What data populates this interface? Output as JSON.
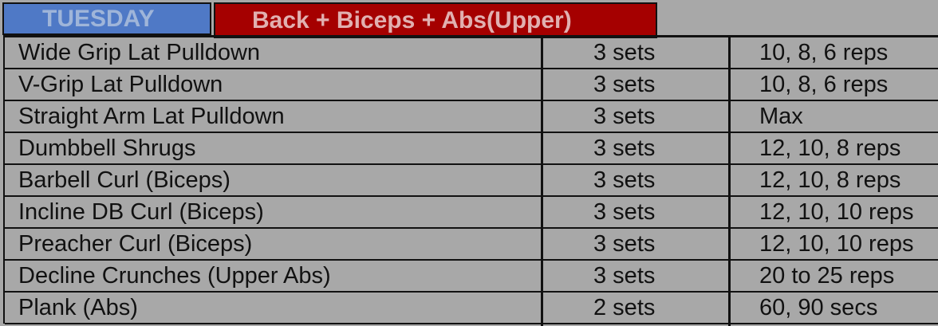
{
  "header": {
    "day": "TUESDAY",
    "title": "Back + Biceps + Abs(Upper)"
  },
  "rows": [
    {
      "exercise": "Wide Grip Lat Pulldown",
      "sets": "3 sets",
      "reps": "10, 8, 6 reps"
    },
    {
      "exercise": "V-Grip Lat Pulldown",
      "sets": "3 sets",
      "reps": "10, 8, 6 reps"
    },
    {
      "exercise": "Straight Arm Lat Pulldown",
      "sets": "3 sets",
      "reps": "Max"
    },
    {
      "exercise": "Dumbbell Shrugs",
      "sets": "3 sets",
      "reps": "12, 10, 8 reps"
    },
    {
      "exercise": "Barbell Curl  (Biceps)",
      "sets": "3 sets",
      "reps": "12, 10, 8 reps"
    },
    {
      "exercise": "Incline DB Curl  (Biceps)",
      "sets": "3 sets",
      "reps": "12, 10, 10 reps"
    },
    {
      "exercise": "Preacher Curl  (Biceps)",
      "sets": "3 sets",
      "reps": "12, 10, 10 reps"
    },
    {
      "exercise": "Decline Crunches  (Upper Abs)",
      "sets": "3 sets",
      "reps": "20 to 25 reps"
    },
    {
      "exercise": "Plank  (Abs)",
      "sets": "2 sets",
      "reps": "60, 90 secs"
    }
  ],
  "colors": {
    "day_bg": "#4f79c6",
    "title_bg": "#a50000",
    "table_bg": "#a8a8a8"
  }
}
